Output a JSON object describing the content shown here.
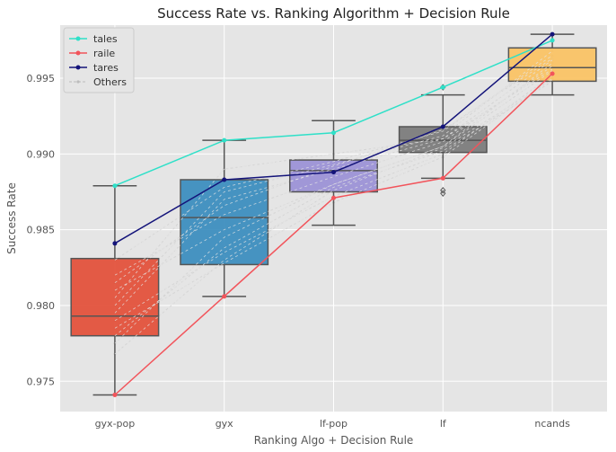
{
  "chart_data": {
    "type": "box",
    "title": "Success Rate vs. Ranking Algorithm + Decision Rule",
    "xlabel": "Ranking Algo + Decision Rule",
    "ylabel": "Success Rate",
    "categories": [
      "gyx-pop",
      "gyx",
      "lf-pop",
      "lf",
      "ncands"
    ],
    "ylim": [
      0.973,
      0.9985
    ],
    "yticks": [
      0.975,
      0.98,
      0.985,
      0.99,
      0.995
    ],
    "ytick_labels": [
      "0.975",
      "0.980",
      "0.985",
      "0.990",
      "0.995"
    ],
    "grid": true,
    "legend_position": "top-left",
    "boxes": [
      {
        "category": "gyx-pop",
        "color": "#e24a33",
        "whisker_low": 0.9741,
        "q1": 0.978,
        "median": 0.9793,
        "q3": 0.9831,
        "whisker_high": 0.9879,
        "outliers": []
      },
      {
        "category": "gyx",
        "color": "#348abd",
        "whisker_low": 0.9806,
        "q1": 0.9827,
        "median": 0.9858,
        "q3": 0.9883,
        "whisker_high": 0.9909,
        "outliers": []
      },
      {
        "category": "lf-pop",
        "color": "#988ed5",
        "whisker_low": 0.9853,
        "q1": 0.9875,
        "median": 0.9889,
        "q3": 0.9896,
        "whisker_high": 0.9922,
        "outliers": []
      },
      {
        "category": "lf",
        "color": "#777777",
        "whisker_low": 0.9884,
        "q1": 0.9901,
        "median": 0.9909,
        "q3": 0.9918,
        "whisker_high": 0.9939,
        "outliers": [
          0.9874,
          0.9876,
          0.9944
        ]
      },
      {
        "category": "ncands",
        "color": "#fbc15e",
        "whisker_low": 0.9939,
        "q1": 0.9948,
        "median": 0.9957,
        "q3": 0.997,
        "whisker_high": 0.9979,
        "outliers": []
      }
    ],
    "series": [
      {
        "name": "tales",
        "color": "#2ee0c8",
        "values": [
          0.9879,
          0.9909,
          0.9914,
          0.9944,
          0.9975
        ]
      },
      {
        "name": "raile",
        "color": "#f2545b",
        "values": [
          0.9741,
          0.9806,
          0.9871,
          0.9884,
          0.9953
        ]
      },
      {
        "name": "tares",
        "color": "#14147a",
        "values": [
          0.9841,
          0.9883,
          0.9888,
          0.9918,
          0.9979
        ]
      }
    ],
    "others": {
      "name": "Others",
      "color": "#d4d4d4",
      "values": [
        [
          0.981,
          0.985,
          0.988,
          0.9905,
          0.9955
        ],
        [
          0.9795,
          0.987,
          0.989,
          0.991,
          0.9962
        ],
        [
          0.978,
          0.9838,
          0.9878,
          0.9902,
          0.9948
        ],
        [
          0.98,
          0.9875,
          0.9893,
          0.9912,
          0.9968
        ],
        [
          0.9785,
          0.9828,
          0.9868,
          0.9898,
          0.995
        ],
        [
          0.982,
          0.986,
          0.9885,
          0.9908,
          0.9958
        ],
        [
          0.9775,
          0.9845,
          0.988,
          0.9905,
          0.996
        ],
        [
          0.983,
          0.9878,
          0.9895,
          0.9915,
          0.9965
        ],
        [
          0.979,
          0.9835,
          0.9872,
          0.99,
          0.9952
        ],
        [
          0.9805,
          0.989,
          0.99,
          0.991,
          0.9956
        ],
        [
          0.9768,
          0.983,
          0.9876,
          0.9904,
          0.9949
        ],
        [
          0.9815,
          0.9866,
          0.9892,
          0.9916,
          0.9963
        ]
      ]
    }
  }
}
